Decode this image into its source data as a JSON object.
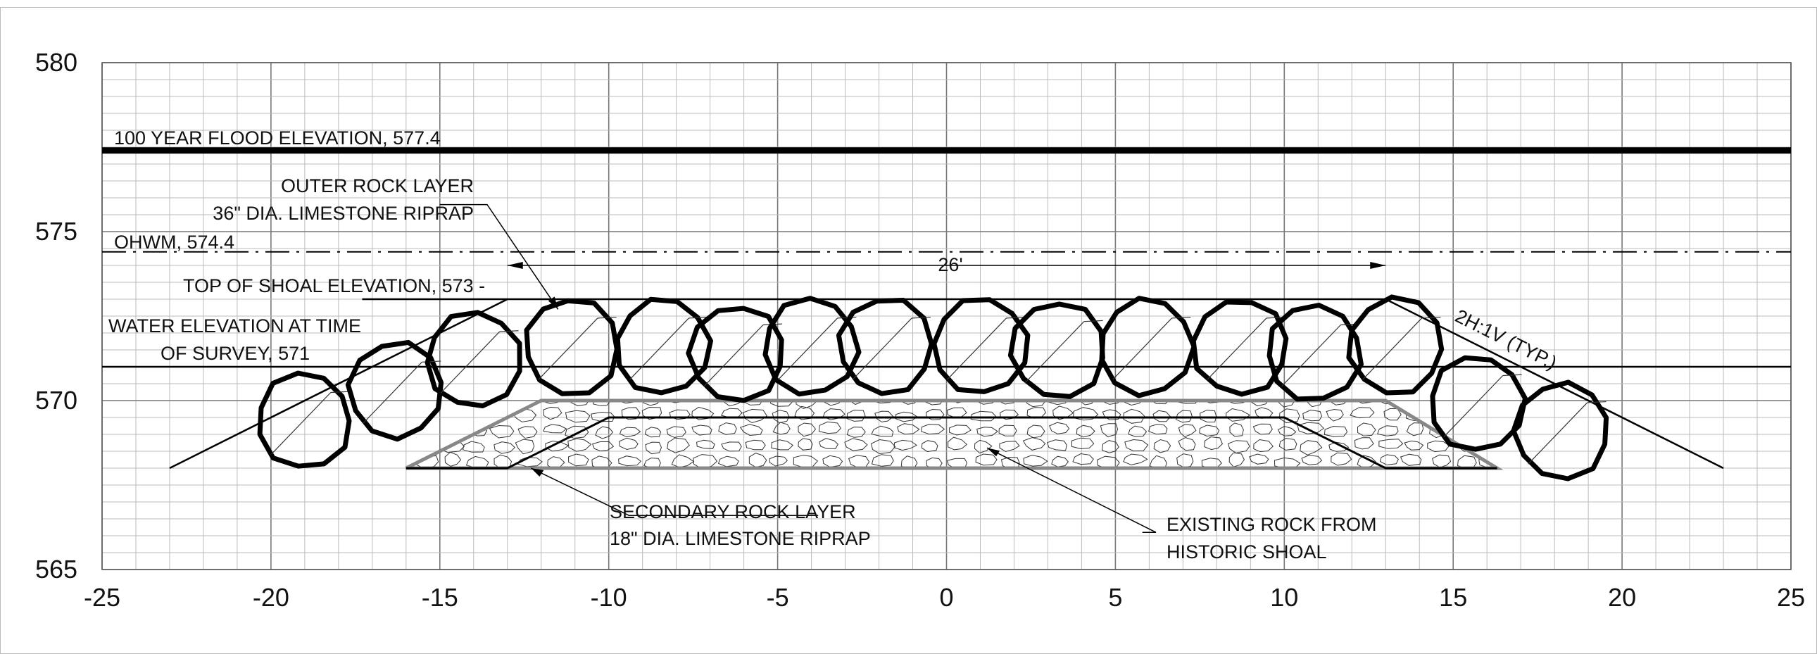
{
  "chart_data": {
    "type": "diagram",
    "x_ticks": [
      -25,
      -20,
      -15,
      -10,
      -5,
      0,
      5,
      10,
      15,
      20,
      25
    ],
    "y_ticks": [
      565,
      570,
      575,
      580
    ],
    "xlim": [
      -25,
      25
    ],
    "ylim": [
      565,
      580
    ],
    "grid": "on",
    "levels": [
      {
        "name": "flood",
        "elevation": 577.4,
        "label": "100 YEAR FLOOD ELEVATION, 577.4"
      },
      {
        "name": "ohwm",
        "elevation": 574.4,
        "label": "OHWM, 574.4"
      },
      {
        "name": "top-of-shoal",
        "elevation": 573,
        "label": "TOP OF SHOAL ELEVATION, 573 -"
      },
      {
        "name": "water-survey",
        "elevation": 571,
        "label_line1": "WATER ELEVATION AT TIME",
        "label_line2": "OF SURVEY, 571"
      }
    ],
    "annotations": {
      "outer_layer_line1": "OUTER ROCK LAYER",
      "outer_layer_line2": "36\" DIA. LIMESTONE RIPRAP",
      "secondary_layer_line1": "SECONDARY ROCK LAYER",
      "secondary_layer_line2": "18\" DIA. LIMESTONE RIPRAP",
      "existing_rock_line1": "EXISTING ROCK FROM",
      "existing_rock_line2": "HISTORIC SHOAL",
      "width_dim": "26'",
      "slope": "2H:1V (TYP.)"
    },
    "shoal": {
      "top_elevation": 573,
      "top_x": [
        -13,
        13
      ],
      "base_elevation": 568,
      "base_x": [
        -23,
        23
      ]
    },
    "existing_rock": {
      "top_elevation": 570,
      "top_x": [
        -12,
        13
      ],
      "base_x": [
        -16,
        16.3
      ]
    },
    "secondary_layer": {
      "top_elevation": 569.5,
      "top_x": [
        -10,
        10
      ],
      "base_x": [
        -13,
        13
      ]
    },
    "outer_boulders": [
      {
        "x": -19,
        "y": 569.4
      },
      {
        "x": -16.3,
        "y": 570.3
      },
      {
        "x": -14,
        "y": 571.2
      },
      {
        "x": -11.1,
        "y": 571.6
      },
      {
        "x": -8.4,
        "y": 571.6
      },
      {
        "x": -6.2,
        "y": 571.4
      },
      {
        "x": -4,
        "y": 571.6
      },
      {
        "x": -1.8,
        "y": 571.6
      },
      {
        "x": 1,
        "y": 571.6
      },
      {
        "x": 3.3,
        "y": 571.5
      },
      {
        "x": 5.9,
        "y": 571.6
      },
      {
        "x": 8.7,
        "y": 571.6
      },
      {
        "x": 10.9,
        "y": 571.4
      },
      {
        "x": 13.3,
        "y": 571.6
      },
      {
        "x": 15.7,
        "y": 569.9
      },
      {
        "x": 18.2,
        "y": 569.1
      }
    ],
    "boulder_radius_ft": 1.4
  }
}
